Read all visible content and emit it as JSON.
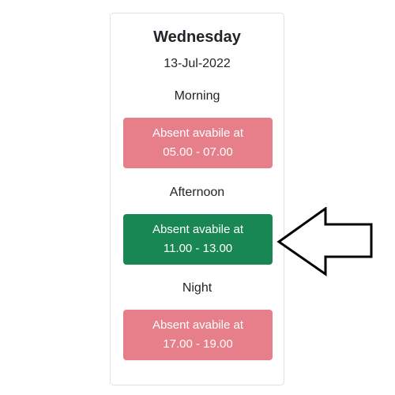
{
  "card": {
    "day": "Wednesday",
    "date": "13-Jul-2022",
    "periods": [
      {
        "label": "Morning",
        "line1": "Absent avabile at",
        "line2": "05.00 - 07.00",
        "state": "absent"
      },
      {
        "label": "Afternoon",
        "line1": "Absent avabile at",
        "line2": "11.00 - 13.00",
        "state": "selected"
      },
      {
        "label": "Night",
        "line1": "Absent avabile at",
        "line2": "17.00 - 19.00",
        "state": "absent"
      }
    ]
  },
  "colors": {
    "absent": "#e77f8a",
    "selected": "#198754"
  },
  "annotation": {
    "icon": "left-arrow-icon"
  }
}
